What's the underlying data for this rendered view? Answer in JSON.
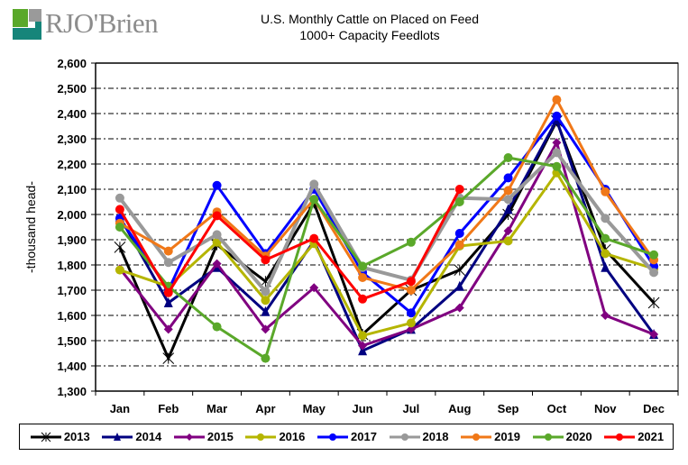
{
  "logo": {
    "text": "RJO'Brien"
  },
  "chart_data": {
    "type": "line",
    "title": "U.S. Monthly Cattle on Placed on Feed",
    "subtitle": "1000+ Capacity Feedlots",
    "xlabel": "",
    "ylabel": "-thousand head-",
    "ylim": [
      1300,
      2600
    ],
    "ytick_step": 100,
    "yticks": [
      "1,300",
      "1,400",
      "1,500",
      "1,600",
      "1,700",
      "1,800",
      "1,900",
      "2,000",
      "2,100",
      "2,200",
      "2,300",
      "2,400",
      "2,500",
      "2,600"
    ],
    "grid": true,
    "legend_position": "bottom",
    "categories": [
      "Jan",
      "Feb",
      "Mar",
      "Apr",
      "May",
      "Jun",
      "Jul",
      "Aug",
      "Sep",
      "Oct",
      "Nov",
      "Dec"
    ],
    "series": [
      {
        "name": "2013",
        "color": "#000000",
        "marker": "star",
        "values": [
          1870,
          1430,
          1880,
          1735,
          2045,
          1525,
          1700,
          1780,
          2000,
          2370,
          1860,
          1650
        ]
      },
      {
        "name": "2014",
        "color": "#000080",
        "marker": "triangle",
        "values": [
          1990,
          1650,
          1790,
          1615,
          1895,
          1460,
          1545,
          1715,
          2020,
          2375,
          1790,
          1525
        ]
      },
      {
        "name": "2015",
        "color": "#800080",
        "marker": "diamond",
        "values": [
          1785,
          1545,
          1805,
          1545,
          1710,
          1480,
          1545,
          1630,
          1935,
          2285,
          1600,
          1525
        ]
      },
      {
        "name": "2016",
        "color": "#b5b500",
        "marker": "circle",
        "values": [
          1780,
          1715,
          1890,
          1660,
          1885,
          1520,
          1570,
          1875,
          1895,
          2165,
          1845,
          1785
        ]
      },
      {
        "name": "2017",
        "color": "#0000ff",
        "marker": "circle",
        "values": [
          1985,
          1700,
          2115,
          1845,
          2100,
          1770,
          1610,
          1925,
          2145,
          2390,
          2100,
          1795
        ]
      },
      {
        "name": "2018",
        "color": "#999999",
        "marker": "circle",
        "values": [
          2065,
          1810,
          1920,
          1695,
          2120,
          1790,
          1740,
          2065,
          2060,
          2245,
          1985,
          1770
        ]
      },
      {
        "name": "2019",
        "color": "#f07818",
        "marker": "circle",
        "values": [
          1965,
          1855,
          2010,
          1835,
          2060,
          1750,
          1700,
          1880,
          2095,
          2455,
          2090,
          1820
        ]
      },
      {
        "name": "2020",
        "color": "#5aa82a",
        "marker": "circle",
        "values": [
          1950,
          1715,
          1555,
          1430,
          2060,
          1795,
          1890,
          2050,
          2225,
          2190,
          1905,
          1840
        ]
      },
      {
        "name": "2021",
        "color": "#ff0000",
        "marker": "circle",
        "values": [
          2020,
          1690,
          1995,
          1820,
          1905,
          1665,
          1735,
          2100,
          null,
          null,
          null,
          null
        ]
      }
    ]
  }
}
